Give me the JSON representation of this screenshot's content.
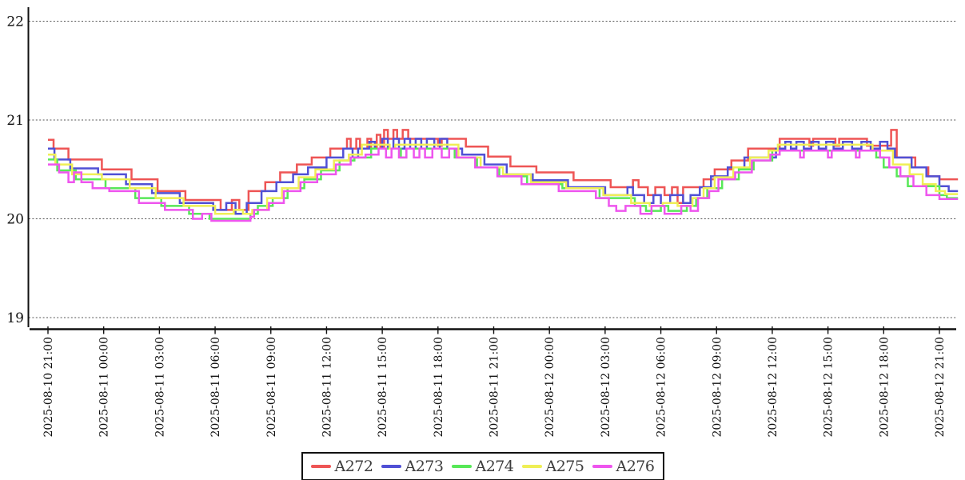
{
  "chart_data": {
    "type": "line",
    "step": true,
    "title": "",
    "grid": "horizontal-dashed",
    "legend_position": "bottom-center",
    "x_axis": {
      "start_label": "2025-08-10 21:00",
      "end_label": "2025-08-12 21:00",
      "tick_interval_hours": 3,
      "tick_rotation_degrees": -90,
      "tick_hours": [
        0,
        3,
        6,
        9,
        12,
        15,
        18,
        21,
        24,
        27,
        30,
        33,
        36,
        39,
        42,
        45,
        48
      ],
      "tick_labels": [
        "2025-08-10 21:00",
        "2025-08-11 00:00",
        "2025-08-11 03:00",
        "2025-08-11 06:00",
        "2025-08-11 09:00",
        "2025-08-11 12:00",
        "2025-08-11 15:00",
        "2025-08-11 18:00",
        "2025-08-11 21:00",
        "2025-08-12 00:00",
        "2025-08-12 03:00",
        "2025-08-12 06:00",
        "2025-08-12 09:00",
        "2025-08-12 12:00",
        "2025-08-12 15:00",
        "2025-08-12 18:00",
        "2025-08-12 21:00"
      ]
    },
    "y_axis": {
      "ticks": [
        19,
        20,
        21,
        22
      ],
      "tick_labels": [
        "19",
        "20",
        "21",
        "22"
      ],
      "range": [
        18.95,
        22.3
      ]
    },
    "series": [
      {
        "name": "A272",
        "color": "#ee5555",
        "points": [
          [
            0,
            20.8
          ],
          [
            0.3,
            20.71
          ],
          [
            1.1,
            20.6
          ],
          [
            2.9,
            20.5
          ],
          [
            4.5,
            20.4
          ],
          [
            5.9,
            20.28
          ],
          [
            7.4,
            20.19
          ],
          [
            9.3,
            20.09
          ],
          [
            9.9,
            20.19
          ],
          [
            10.3,
            20.09
          ],
          [
            10.8,
            20.28
          ],
          [
            11.7,
            20.37
          ],
          [
            12.5,
            20.47
          ],
          [
            13.4,
            20.55
          ],
          [
            14.2,
            20.62
          ],
          [
            15.2,
            20.71
          ],
          [
            16.1,
            20.81
          ],
          [
            16.3,
            20.71
          ],
          [
            16.6,
            20.81
          ],
          [
            16.8,
            20.71
          ],
          [
            17.2,
            20.81
          ],
          [
            17.4,
            20.71
          ],
          [
            17.7,
            20.85
          ],
          [
            17.9,
            20.71
          ],
          [
            18.1,
            20.9
          ],
          [
            18.3,
            20.81
          ],
          [
            18.6,
            20.9
          ],
          [
            18.8,
            20.81
          ],
          [
            19.1,
            20.9
          ],
          [
            19.4,
            20.81
          ],
          [
            21.0,
            20.74
          ],
          [
            21.2,
            20.81
          ],
          [
            22.5,
            20.73
          ],
          [
            23.7,
            20.63
          ],
          [
            24.9,
            20.53
          ],
          [
            26.3,
            20.47
          ],
          [
            28.3,
            20.39
          ],
          [
            30.3,
            20.32
          ],
          [
            31.5,
            20.39
          ],
          [
            31.8,
            20.32
          ],
          [
            32.3,
            20.24
          ],
          [
            32.7,
            20.32
          ],
          [
            33.2,
            20.24
          ],
          [
            33.6,
            20.32
          ],
          [
            33.9,
            20.16
          ],
          [
            34.2,
            20.32
          ],
          [
            35.3,
            20.4
          ],
          [
            35.9,
            20.5
          ],
          [
            36.8,
            20.59
          ],
          [
            37.7,
            20.71
          ],
          [
            39.4,
            20.81
          ],
          [
            41.0,
            20.74
          ],
          [
            41.2,
            20.81
          ],
          [
            42.4,
            20.74
          ],
          [
            42.6,
            20.81
          ],
          [
            44.1,
            20.74
          ],
          [
            45.4,
            20.9
          ],
          [
            45.7,
            20.62
          ],
          [
            46.7,
            20.52
          ],
          [
            47.4,
            20.43
          ],
          [
            48.0,
            20.4
          ],
          [
            49.0,
            20.4
          ]
        ]
      },
      {
        "name": "A273",
        "color": "#5050d5",
        "points": [
          [
            0,
            20.71
          ],
          [
            0.35,
            20.6
          ],
          [
            1.2,
            20.51
          ],
          [
            2.7,
            20.45
          ],
          [
            4.2,
            20.35
          ],
          [
            5.6,
            20.26
          ],
          [
            7.1,
            20.16
          ],
          [
            8.9,
            20.09
          ],
          [
            9.6,
            20.16
          ],
          [
            10.1,
            20.05
          ],
          [
            10.7,
            20.16
          ],
          [
            11.5,
            20.28
          ],
          [
            12.3,
            20.37
          ],
          [
            13.2,
            20.45
          ],
          [
            14.0,
            20.52
          ],
          [
            15.0,
            20.62
          ],
          [
            15.9,
            20.71
          ],
          [
            16.4,
            20.62
          ],
          [
            16.7,
            20.71
          ],
          [
            17.3,
            20.78
          ],
          [
            17.6,
            20.71
          ],
          [
            18.0,
            20.81
          ],
          [
            18.3,
            20.71
          ],
          [
            18.6,
            20.81
          ],
          [
            18.9,
            20.71
          ],
          [
            19.2,
            20.81
          ],
          [
            19.5,
            20.71
          ],
          [
            19.8,
            20.81
          ],
          [
            20.1,
            20.71
          ],
          [
            20.4,
            20.81
          ],
          [
            20.8,
            20.71
          ],
          [
            21.1,
            20.81
          ],
          [
            21.5,
            20.71
          ],
          [
            22.3,
            20.65
          ],
          [
            23.5,
            20.55
          ],
          [
            24.7,
            20.45
          ],
          [
            26.1,
            20.39
          ],
          [
            28.0,
            20.32
          ],
          [
            30.0,
            20.24
          ],
          [
            31.2,
            20.32
          ],
          [
            31.5,
            20.24
          ],
          [
            32.1,
            20.16
          ],
          [
            32.6,
            20.24
          ],
          [
            33.0,
            20.16
          ],
          [
            33.5,
            20.24
          ],
          [
            34.2,
            20.16
          ],
          [
            34.6,
            20.24
          ],
          [
            35.1,
            20.32
          ],
          [
            35.7,
            20.43
          ],
          [
            36.6,
            20.52
          ],
          [
            37.5,
            20.62
          ],
          [
            39.2,
            20.71
          ],
          [
            39.7,
            20.78
          ],
          [
            40.0,
            20.71
          ],
          [
            40.3,
            20.78
          ],
          [
            40.7,
            20.71
          ],
          [
            41.1,
            20.78
          ],
          [
            41.5,
            20.71
          ],
          [
            41.9,
            20.78
          ],
          [
            42.3,
            20.71
          ],
          [
            42.8,
            20.78
          ],
          [
            43.3,
            20.71
          ],
          [
            43.8,
            20.78
          ],
          [
            44.3,
            20.71
          ],
          [
            44.8,
            20.78
          ],
          [
            45.2,
            20.71
          ],
          [
            45.6,
            20.62
          ],
          [
            46.5,
            20.52
          ],
          [
            47.3,
            20.43
          ],
          [
            48.0,
            20.33
          ],
          [
            48.5,
            20.28
          ],
          [
            49.0,
            20.28
          ]
        ]
      },
      {
        "name": "A274",
        "color": "#57e857",
        "points": [
          [
            0,
            20.6
          ],
          [
            0.5,
            20.49
          ],
          [
            1.5,
            20.4
          ],
          [
            3.1,
            20.31
          ],
          [
            4.7,
            20.21
          ],
          [
            6.1,
            20.13
          ],
          [
            7.6,
            20.05
          ],
          [
            8.7,
            20.0
          ],
          [
            10.9,
            20.05
          ],
          [
            11.3,
            20.13
          ],
          [
            12.1,
            20.21
          ],
          [
            12.9,
            20.31
          ],
          [
            13.8,
            20.4
          ],
          [
            14.7,
            20.49
          ],
          [
            15.7,
            20.59
          ],
          [
            16.5,
            20.62
          ],
          [
            17.4,
            20.71
          ],
          [
            19.0,
            20.62
          ],
          [
            19.3,
            20.71
          ],
          [
            21.9,
            20.62
          ],
          [
            23.1,
            20.52
          ],
          [
            24.3,
            20.43
          ],
          [
            25.8,
            20.35
          ],
          [
            27.7,
            20.31
          ],
          [
            29.7,
            20.21
          ],
          [
            31.6,
            20.13
          ],
          [
            32.2,
            20.08
          ],
          [
            33.0,
            20.13
          ],
          [
            33.4,
            20.08
          ],
          [
            34.4,
            20.13
          ],
          [
            34.9,
            20.21
          ],
          [
            35.5,
            20.31
          ],
          [
            36.3,
            20.4
          ],
          [
            37.2,
            20.5
          ],
          [
            38.0,
            20.59
          ],
          [
            39.0,
            20.69
          ],
          [
            44.6,
            20.62
          ],
          [
            45.0,
            20.52
          ],
          [
            45.7,
            20.43
          ],
          [
            46.3,
            20.33
          ],
          [
            48.0,
            20.24
          ],
          [
            48.4,
            20.21
          ],
          [
            49.0,
            20.21
          ]
        ]
      },
      {
        "name": "A275",
        "color": "#efef55",
        "points": [
          [
            0,
            20.65
          ],
          [
            0.4,
            20.55
          ],
          [
            1.3,
            20.45
          ],
          [
            2.9,
            20.4
          ],
          [
            4.4,
            20.31
          ],
          [
            5.8,
            20.21
          ],
          [
            7.3,
            20.13
          ],
          [
            9.0,
            20.05
          ],
          [
            10.0,
            20.09
          ],
          [
            10.5,
            20.05
          ],
          [
            11.0,
            20.09
          ],
          [
            11.8,
            20.21
          ],
          [
            12.6,
            20.31
          ],
          [
            13.5,
            20.42
          ],
          [
            14.4,
            20.5
          ],
          [
            15.4,
            20.59
          ],
          [
            16.2,
            20.65
          ],
          [
            16.9,
            20.75
          ],
          [
            18.4,
            20.71
          ],
          [
            18.7,
            20.75
          ],
          [
            20.9,
            20.75
          ],
          [
            22.1,
            20.62
          ],
          [
            23.3,
            20.52
          ],
          [
            24.5,
            20.45
          ],
          [
            26.0,
            20.37
          ],
          [
            27.9,
            20.31
          ],
          [
            29.9,
            20.24
          ],
          [
            31.4,
            20.16
          ],
          [
            32.4,
            20.13
          ],
          [
            33.1,
            20.16
          ],
          [
            33.9,
            20.13
          ],
          [
            34.7,
            20.21
          ],
          [
            35.3,
            20.31
          ],
          [
            35.9,
            20.42
          ],
          [
            36.9,
            20.52
          ],
          [
            37.8,
            20.62
          ],
          [
            38.8,
            20.69
          ],
          [
            39.3,
            20.75
          ],
          [
            44.4,
            20.69
          ],
          [
            45.5,
            20.55
          ],
          [
            46.4,
            20.45
          ],
          [
            47.1,
            20.35
          ],
          [
            47.8,
            20.28
          ],
          [
            48.3,
            20.25
          ],
          [
            49.0,
            20.25
          ]
        ]
      },
      {
        "name": "A276",
        "color": "#ee55ee",
        "points": [
          [
            0,
            20.55
          ],
          [
            0.6,
            20.47
          ],
          [
            1.1,
            20.37
          ],
          [
            1.4,
            20.47
          ],
          [
            1.8,
            20.37
          ],
          [
            2.4,
            20.31
          ],
          [
            3.3,
            20.28
          ],
          [
            4.9,
            20.16
          ],
          [
            6.3,
            20.09
          ],
          [
            7.8,
            20.0
          ],
          [
            8.3,
            20.05
          ],
          [
            8.8,
            19.98
          ],
          [
            10.9,
            20.02
          ],
          [
            11.1,
            20.09
          ],
          [
            11.9,
            20.16
          ],
          [
            12.7,
            20.28
          ],
          [
            13.6,
            20.37
          ],
          [
            14.5,
            20.45
          ],
          [
            15.5,
            20.55
          ],
          [
            16.3,
            20.62
          ],
          [
            17.1,
            20.65
          ],
          [
            17.8,
            20.71
          ],
          [
            18.2,
            20.62
          ],
          [
            18.5,
            20.71
          ],
          [
            18.9,
            20.62
          ],
          [
            19.3,
            20.71
          ],
          [
            19.7,
            20.62
          ],
          [
            20.0,
            20.71
          ],
          [
            20.3,
            20.62
          ],
          [
            20.7,
            20.71
          ],
          [
            21.2,
            20.62
          ],
          [
            21.6,
            20.71
          ],
          [
            22.0,
            20.62
          ],
          [
            23.0,
            20.52
          ],
          [
            24.2,
            20.43
          ],
          [
            25.5,
            20.35
          ],
          [
            27.5,
            20.28
          ],
          [
            29.5,
            20.21
          ],
          [
            30.2,
            20.13
          ],
          [
            30.6,
            20.08
          ],
          [
            31.1,
            20.13
          ],
          [
            31.9,
            20.05
          ],
          [
            32.5,
            20.13
          ],
          [
            33.2,
            20.05
          ],
          [
            34.1,
            20.13
          ],
          [
            34.6,
            20.08
          ],
          [
            35.0,
            20.21
          ],
          [
            35.6,
            20.28
          ],
          [
            36.1,
            20.4
          ],
          [
            37.0,
            20.47
          ],
          [
            37.9,
            20.59
          ],
          [
            38.9,
            20.65
          ],
          [
            39.4,
            20.69
          ],
          [
            40.5,
            20.62
          ],
          [
            40.7,
            20.69
          ],
          [
            42.0,
            20.62
          ],
          [
            42.2,
            20.69
          ],
          [
            43.5,
            20.62
          ],
          [
            43.7,
            20.69
          ],
          [
            44.8,
            20.62
          ],
          [
            45.3,
            20.52
          ],
          [
            45.9,
            20.43
          ],
          [
            46.6,
            20.33
          ],
          [
            47.3,
            20.24
          ],
          [
            48.0,
            20.2
          ],
          [
            49.0,
            20.2
          ]
        ]
      }
    ],
    "style": {
      "background": "#ffffff",
      "axis_color": "#111111",
      "gridline_color": "#555555",
      "legend_border_color": "#111111",
      "legend_text_color": "#3d3d3d"
    }
  }
}
